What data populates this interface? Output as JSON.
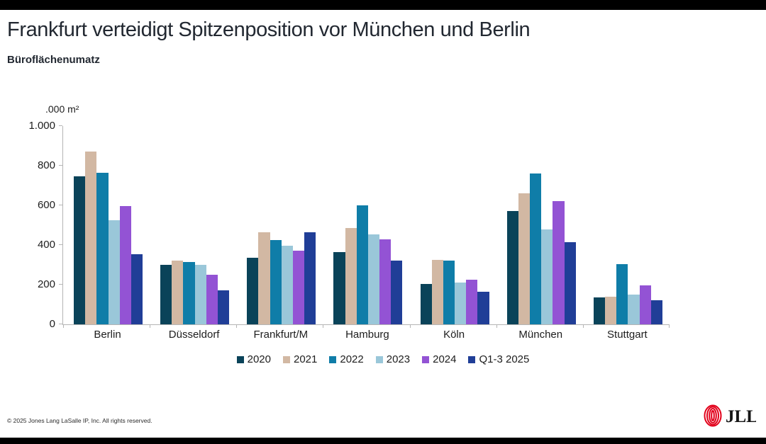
{
  "page": {
    "title": "Frankfurt verteidigt Spitzenposition vor München und Berlin",
    "subtitle": "Büroflächenumatz",
    "footer": "© 2025 Jones Lang LaSalle IP, Inc. All rights reserved.",
    "logo_text": "JLL",
    "colors": {
      "logo_red": "#e2001a",
      "axis_gray": "#b5b5b5",
      "text_dark": "#222831"
    }
  },
  "chart_data": {
    "type": "bar",
    "title": "Frankfurt verteidigt Spitzenposition vor München und Berlin",
    "subtitle": "Büroflächenumatz",
    "unit_label": ".000 m²",
    "categories": [
      "Berlin",
      "Düsseldorf",
      "Frankfurt/M",
      "Hamburg",
      "Köln",
      "München",
      "Stuttgart"
    ],
    "series": [
      {
        "name": "2020",
        "color": "#0a4359",
        "values": [
          745,
          300,
          335,
          365,
          205,
          570,
          135
        ]
      },
      {
        "name": "2021",
        "color": "#d2b8a3",
        "values": [
          870,
          320,
          465,
          485,
          325,
          660,
          140
        ]
      },
      {
        "name": "2022",
        "color": "#0f7da8",
        "values": [
          765,
          315,
          425,
          600,
          320,
          760,
          305
        ]
      },
      {
        "name": "2023",
        "color": "#9ac7d9",
        "values": [
          525,
          300,
          395,
          455,
          210,
          480,
          150
        ]
      },
      {
        "name": "2024",
        "color": "#9353d4",
        "values": [
          595,
          250,
          370,
          430,
          225,
          620,
          195
        ]
      },
      {
        "name": "Q1-3 2025",
        "color": "#203e97",
        "values": [
          355,
          170,
          465,
          320,
          165,
          415,
          120
        ]
      }
    ],
    "ylim": [
      0,
      1000
    ],
    "yticks": [
      {
        "label": "1.000",
        "value": 1000
      },
      {
        "label": "800",
        "value": 800
      },
      {
        "label": "600",
        "value": 600
      },
      {
        "label": "400",
        "value": 400
      },
      {
        "label": "200",
        "value": 200
      },
      {
        "label": "0",
        "value": 0
      }
    ],
    "grid": false,
    "legend_position": "bottom"
  }
}
